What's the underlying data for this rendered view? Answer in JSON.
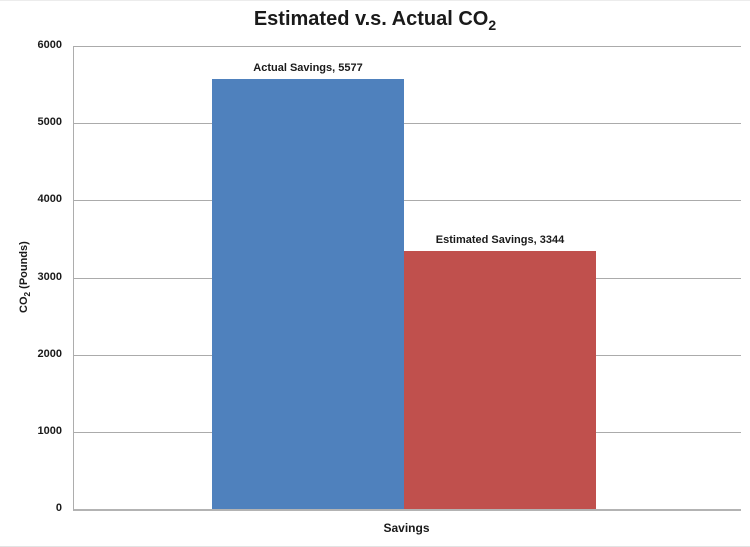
{
  "title": {
    "main": "Estimated v.s. Actual CO",
    "sub": "2"
  },
  "chart_data": {
    "type": "bar",
    "title": "Estimated v.s. Actual CO2",
    "categories": [
      "Savings"
    ],
    "series": [
      {
        "name": "Actual Savings",
        "value": 5577,
        "color": "#4F81BD",
        "label": "Actual Savings, 5577"
      },
      {
        "name": "Estimated Savings",
        "value": 3344,
        "color": "#C0504D",
        "label": "Estimated Savings, 3344"
      }
    ],
    "xlabel": "Savings",
    "ylabel": {
      "prefix": "CO",
      "sub": "2",
      "suffix": " (Pounds)"
    },
    "ylim": [
      0,
      6000
    ],
    "ytick_step": 1000,
    "yticks": [
      "0",
      "1000",
      "2000",
      "3000",
      "4000",
      "5000",
      "6000"
    ],
    "grid": "horizontal",
    "gridline_color": "#ababab",
    "legend": "none",
    "data_labels": "outside-end"
  }
}
